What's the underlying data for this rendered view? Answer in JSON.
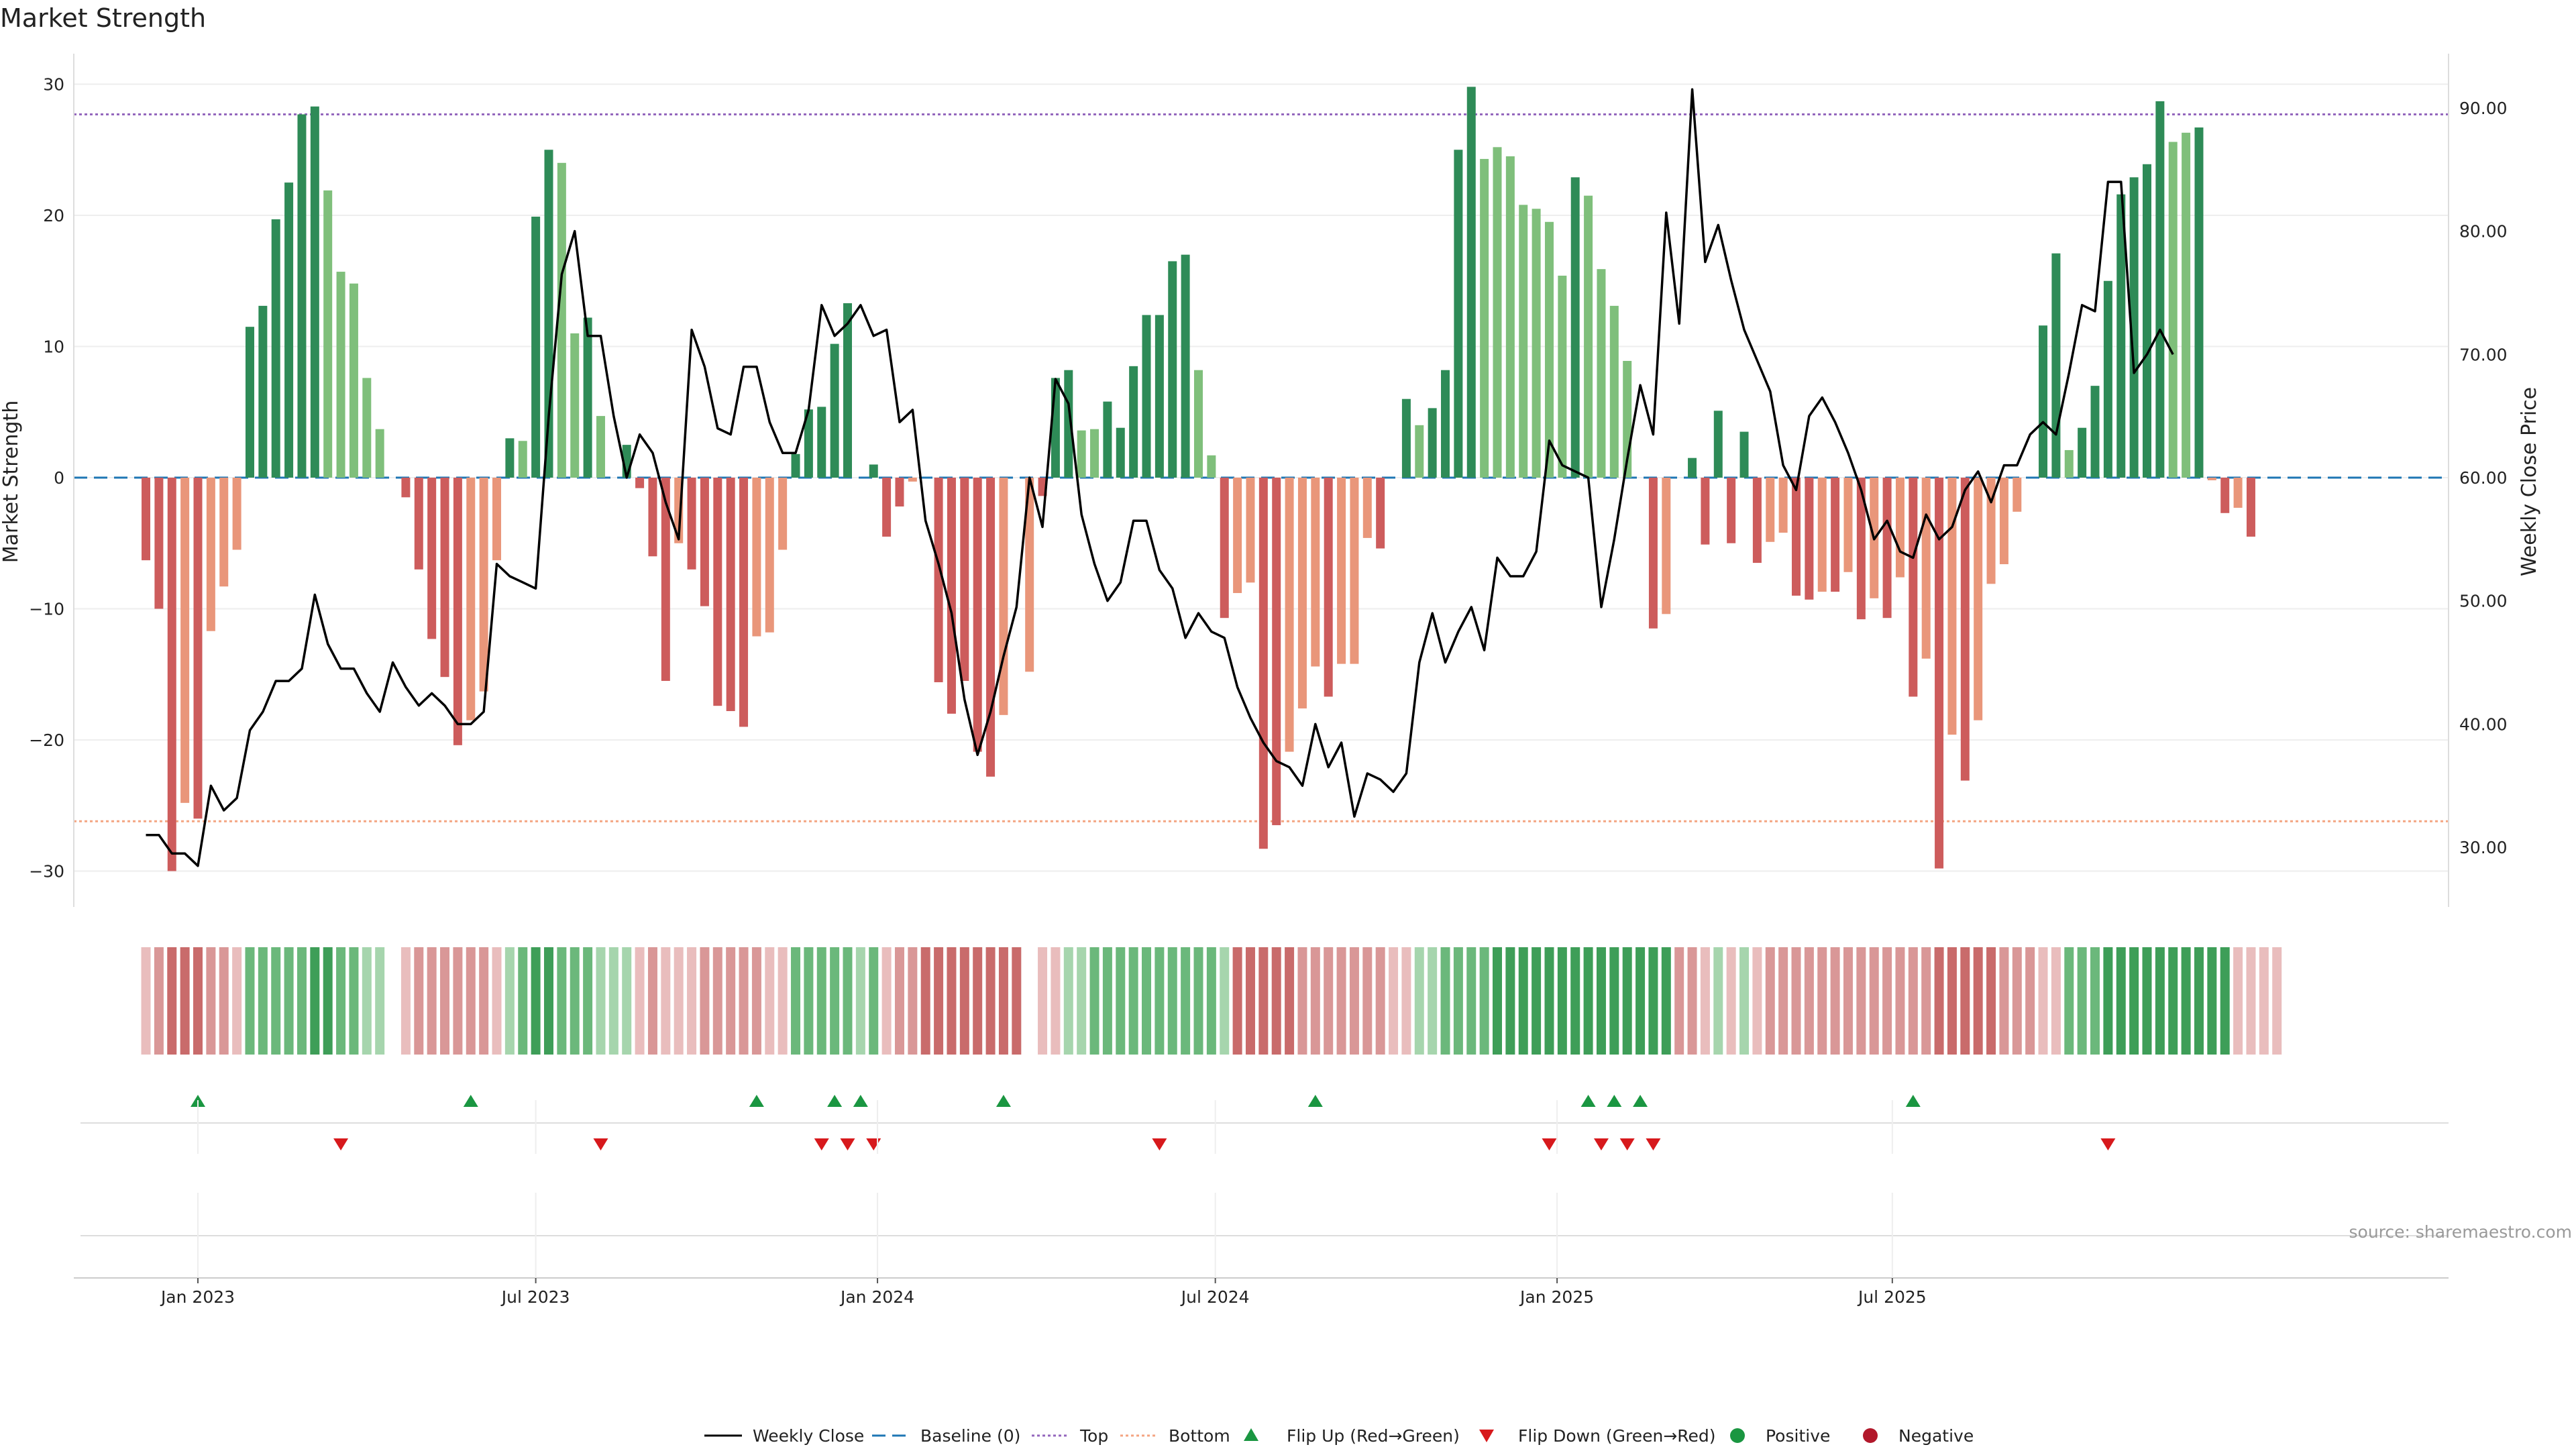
{
  "title": "Market Strength",
  "source_note": "source: sharemaestro.com",
  "chart_data": {
    "type": "bar",
    "title": "Market Strength",
    "y_left": {
      "label": "Market Strength",
      "ylim": [
        -32.5,
        32.5
      ],
      "ticks": [
        30,
        20,
        10,
        0,
        -10,
        -20,
        -30
      ],
      "tick_labels": [
        "30",
        "20",
        "10",
        "0",
        "−10",
        "−20",
        "−30"
      ]
    },
    "y_right": {
      "label": "Weekly Close Price",
      "ylim": [
        25,
        95
      ],
      "ticks": [
        90,
        80,
        70,
        60,
        50,
        40,
        30
      ],
      "tick_labels": [
        "90.00",
        "80.00",
        "70.00",
        "60.00",
        "50.00",
        "40.00",
        "30.00"
      ]
    },
    "x_axis": {
      "start_week_offset": -4,
      "date_ticks": [
        {
          "week": 0,
          "label": "Jan 2023"
        },
        {
          "week": 26,
          "label": "Jul 2023"
        },
        {
          "week": 52.3,
          "label": "Jan 2024"
        },
        {
          "week": 78.3,
          "label": "Jul 2024"
        },
        {
          "week": 104.6,
          "label": "Jan 2025"
        },
        {
          "week": 130.4,
          "label": "Jul 2025"
        }
      ]
    },
    "reference_lines": {
      "top": 27.7,
      "bottom": -26.2,
      "baseline": 0
    },
    "colors": {
      "pos_strong": "#2e8b57",
      "pos_weak": "#7fbf7b",
      "neg_strong": "#cd5c5c",
      "neg_weak": "#e9967a",
      "line": "#000000",
      "top_line": "#9467bd",
      "bottom_line": "#f4a582",
      "baseline": "#1f77b4",
      "flip_up": "#1a9641",
      "flip_down": "#d7191c",
      "positive": "#1a9641",
      "negative": "#b2182b"
    },
    "strength_values": [
      -6.3,
      -10,
      -30,
      -24.8,
      -26,
      -11.7,
      -8.3,
      -5.5,
      11.5,
      13.1,
      19.7,
      22.5,
      27.7,
      28.3,
      21.9,
      15.7,
      14.8,
      7.6,
      3.7,
      0,
      -1.5,
      -7,
      -12.3,
      -15.2,
      -20.4,
      -18.5,
      -16.3,
      -6.3,
      3,
      2.8,
      19.9,
      25,
      24,
      11,
      12.2,
      4.7,
      0,
      2.5,
      -0.8,
      -6,
      -15.5,
      -5,
      -7,
      -9.8,
      -17.4,
      -17.8,
      -19,
      -12.1,
      -11.8,
      -5.5,
      1.8,
      5.2,
      5.4,
      10.2,
      13.3,
      0,
      1,
      -4.5,
      -2.2,
      -0.3,
      0,
      -15.6,
      -18,
      -15.5,
      -20.9,
      -22.8,
      -18.1,
      0,
      -14.8,
      -1.4,
      7.6,
      8.2,
      3.6,
      3.7,
      5.8,
      3.8,
      8.5,
      12.4,
      12.4,
      16.5,
      17,
      8.2,
      1.7,
      -10.7,
      -8.8,
      -8,
      -28.3,
      -26.5,
      -20.9,
      -17.6,
      -14.4,
      -16.7,
      -14.2,
      -14.2,
      -4.6,
      -5.4,
      0,
      6,
      4,
      5.3,
      8.2,
      25,
      29.8,
      24.3,
      25.2,
      24.5,
      20.8,
      20.5,
      19.5,
      15.4,
      22.9,
      21.5,
      15.9,
      13.1,
      8.9,
      0,
      -11.5,
      -10.4,
      0,
      1.5,
      -5.1,
      5.1,
      -5,
      3.5,
      -6.5,
      -4.9,
      -4.2,
      -9,
      -9.3,
      -8.7,
      -8.7,
      -7.2,
      -10.8,
      -9.2,
      -10.7,
      -7.6,
      -16.7,
      -13.8,
      -29.8,
      -19.6,
      -23.1,
      -18.5,
      -8.1,
      -6.6,
      -2.6,
      0,
      11.6,
      17.1,
      2.1,
      3.8,
      7,
      15,
      21.6,
      22.9,
      23.9,
      28.7,
      25.6,
      26.3,
      26.7,
      -0.2,
      -2.7,
      -2.3,
      -4.5
    ],
    "strength_colors": [
      "neg_strong",
      "neg_strong",
      "neg_strong",
      "neg_weak",
      "neg_strong",
      "neg_weak",
      "neg_weak",
      "neg_weak",
      "pos_strong",
      "pos_strong",
      "pos_strong",
      "pos_strong",
      "pos_strong",
      "pos_strong",
      "pos_weak",
      "pos_weak",
      "pos_weak",
      "pos_weak",
      "pos_weak",
      "none",
      "neg_strong",
      "neg_strong",
      "neg_strong",
      "neg_strong",
      "neg_strong",
      "neg_weak",
      "neg_weak",
      "neg_weak",
      "pos_strong",
      "pos_weak",
      "pos_strong",
      "pos_strong",
      "pos_weak",
      "pos_weak",
      "pos_strong",
      "pos_weak",
      "none",
      "pos_strong",
      "neg_strong",
      "neg_strong",
      "neg_strong",
      "neg_weak",
      "neg_strong",
      "neg_strong",
      "neg_strong",
      "neg_strong",
      "neg_strong",
      "neg_weak",
      "neg_weak",
      "neg_weak",
      "pos_strong",
      "pos_strong",
      "pos_strong",
      "pos_strong",
      "pos_strong",
      "none",
      "pos_strong",
      "neg_strong",
      "neg_strong",
      "neg_weak",
      "none",
      "neg_strong",
      "neg_strong",
      "neg_strong",
      "neg_strong",
      "neg_strong",
      "neg_weak",
      "none",
      "neg_weak",
      "neg_strong",
      "pos_strong",
      "pos_strong",
      "pos_weak",
      "pos_weak",
      "pos_strong",
      "pos_strong",
      "pos_strong",
      "pos_strong",
      "pos_strong",
      "pos_strong",
      "pos_strong",
      "pos_weak",
      "pos_weak",
      "neg_strong",
      "neg_weak",
      "neg_weak",
      "neg_strong",
      "neg_strong",
      "neg_weak",
      "neg_weak",
      "neg_weak",
      "neg_strong",
      "neg_weak",
      "neg_weak",
      "neg_weak",
      "neg_strong",
      "none",
      "pos_strong",
      "pos_weak",
      "pos_strong",
      "pos_strong",
      "pos_strong",
      "pos_strong",
      "pos_weak",
      "pos_weak",
      "pos_weak",
      "pos_weak",
      "pos_weak",
      "pos_weak",
      "pos_weak",
      "pos_strong",
      "pos_weak",
      "pos_weak",
      "pos_weak",
      "pos_weak",
      "none",
      "neg_strong",
      "neg_weak",
      "none",
      "pos_strong",
      "neg_strong",
      "pos_strong",
      "neg_strong",
      "pos_strong",
      "neg_strong",
      "neg_weak",
      "neg_weak",
      "neg_strong",
      "neg_strong",
      "neg_weak",
      "neg_strong",
      "neg_weak",
      "neg_strong",
      "neg_weak",
      "neg_strong",
      "neg_weak",
      "neg_strong",
      "neg_weak",
      "neg_strong",
      "neg_weak",
      "neg_strong",
      "neg_weak",
      "neg_weak",
      "neg_weak",
      "neg_weak",
      "none",
      "pos_strong",
      "pos_strong",
      "pos_weak",
      "pos_strong",
      "pos_strong",
      "pos_strong",
      "pos_strong",
      "pos_strong",
      "pos_strong",
      "pos_strong",
      "pos_weak",
      "pos_weak",
      "pos_strong",
      "neg_weak",
      "neg_strong",
      "neg_weak",
      "neg_strong"
    ],
    "price_points": [
      [
        -4,
        31
      ],
      [
        -3,
        31
      ],
      [
        -2,
        29.5
      ],
      [
        -1,
        29.5
      ],
      [
        0,
        28.5
      ],
      [
        1,
        35
      ],
      [
        2,
        33
      ],
      [
        3,
        34
      ],
      [
        4,
        39.5
      ],
      [
        5,
        41
      ],
      [
        6,
        43.5
      ],
      [
        7,
        43.5
      ],
      [
        8,
        44.5
      ],
      [
        9,
        50.5
      ],
      [
        10,
        46.5
      ],
      [
        11,
        44.5
      ],
      [
        12,
        44.5
      ],
      [
        13,
        42.5
      ],
      [
        14,
        41
      ],
      [
        15,
        45
      ],
      [
        16,
        43
      ],
      [
        17,
        41.5
      ],
      [
        18,
        42.5
      ],
      [
        19,
        41.5
      ],
      [
        20,
        40
      ],
      [
        21,
        40
      ],
      [
        22,
        41
      ],
      [
        23,
        53
      ],
      [
        24,
        52
      ],
      [
        25,
        51.5
      ],
      [
        26,
        51
      ],
      [
        27,
        65
      ],
      [
        28,
        76.5
      ],
      [
        29,
        80
      ],
      [
        30,
        71.5
      ],
      [
        31,
        71.5
      ],
      [
        32,
        65
      ],
      [
        33,
        60
      ],
      [
        34,
        63.5
      ],
      [
        35,
        62
      ],
      [
        36,
        58
      ],
      [
        37,
        55
      ],
      [
        38,
        72
      ],
      [
        39,
        69
      ],
      [
        40,
        64
      ],
      [
        41,
        63.5
      ],
      [
        42,
        69
      ],
      [
        43,
        69
      ],
      [
        44,
        64.5
      ],
      [
        45,
        62
      ],
      [
        46,
        62
      ],
      [
        47,
        65.5
      ],
      [
        48,
        74
      ],
      [
        49,
        71.5
      ],
      [
        50,
        72.5
      ],
      [
        51,
        74
      ],
      [
        52,
        71.5
      ],
      [
        53,
        72
      ],
      [
        54,
        64.5
      ],
      [
        55,
        65.5
      ],
      [
        56,
        56.5
      ],
      [
        57,
        53
      ],
      [
        58,
        49
      ],
      [
        59,
        42
      ],
      [
        60,
        37.5
      ],
      [
        61,
        41
      ],
      [
        62,
        45.5
      ],
      [
        63,
        49.5
      ],
      [
        64,
        60
      ],
      [
        65,
        56
      ],
      [
        66,
        68
      ],
      [
        67,
        66
      ],
      [
        68,
        57
      ],
      [
        69,
        53
      ],
      [
        70,
        50
      ],
      [
        71,
        51.5
      ],
      [
        72,
        56.5
      ],
      [
        73,
        56.5
      ],
      [
        74,
        52.5
      ],
      [
        75,
        51
      ],
      [
        76,
        47
      ],
      [
        77,
        49
      ],
      [
        78,
        47.5
      ],
      [
        79,
        47
      ],
      [
        80,
        43
      ],
      [
        81,
        40.5
      ],
      [
        82,
        38.5
      ],
      [
        83,
        37
      ],
      [
        84,
        36.5
      ],
      [
        85,
        35
      ],
      [
        86,
        40
      ],
      [
        87,
        36.5
      ],
      [
        88,
        38.5
      ],
      [
        89,
        32.5
      ],
      [
        90,
        36
      ],
      [
        91,
        35.5
      ],
      [
        92,
        34.5
      ],
      [
        93,
        36
      ],
      [
        94,
        45
      ],
      [
        95,
        49
      ],
      [
        96,
        45
      ],
      [
        97,
        47.5
      ],
      [
        98,
        49.5
      ],
      [
        99,
        46
      ],
      [
        100,
        53.5
      ],
      [
        101,
        52
      ],
      [
        102,
        52
      ],
      [
        103,
        54
      ],
      [
        104,
        63
      ],
      [
        105,
        61
      ],
      [
        106,
        60.5
      ],
      [
        107,
        60
      ],
      [
        108,
        49.5
      ],
      [
        109,
        55
      ],
      [
        110,
        61.5
      ],
      [
        111,
        67.5
      ],
      [
        112,
        63.5
      ],
      [
        113,
        81.5
      ],
      [
        114,
        72.5
      ],
      [
        115,
        91.5
      ],
      [
        116,
        77.5
      ],
      [
        117,
        80.5
      ],
      [
        118,
        76
      ],
      [
        119,
        72
      ],
      [
        120,
        69.5
      ],
      [
        121,
        67
      ],
      [
        122,
        61
      ],
      [
        123,
        59
      ],
      [
        124,
        65
      ],
      [
        125,
        66.5
      ],
      [
        126,
        64.5
      ],
      [
        127,
        62
      ],
      [
        128,
        59
      ],
      [
        129,
        55
      ],
      [
        130,
        56.5
      ],
      [
        131,
        54
      ],
      [
        132,
        53.5
      ],
      [
        133,
        57
      ],
      [
        134,
        55
      ],
      [
        135,
        56
      ],
      [
        136,
        59
      ],
      [
        137,
        60.5
      ],
      [
        138,
        58
      ],
      [
        139,
        61
      ],
      [
        140,
        61
      ],
      [
        141,
        63.5
      ],
      [
        142,
        64.5
      ],
      [
        143,
        63.5
      ],
      [
        144,
        68.5
      ],
      [
        145,
        74
      ],
      [
        146,
        73.5
      ],
      [
        147,
        84
      ],
      [
        148,
        84
      ],
      [
        149,
        68.5
      ],
      [
        150,
        70
      ],
      [
        151,
        72
      ],
      [
        152,
        70
      ]
    ],
    "heat_strip": {
      "values": [
        -1,
        -2,
        -3,
        -3,
        -3,
        -2,
        -2,
        -1,
        2,
        2,
        2,
        2,
        2,
        3,
        3,
        2,
        2,
        1,
        1,
        0,
        -1,
        -2,
        -2,
        -2,
        -2,
        -2,
        -2,
        -1,
        1,
        2,
        3,
        3,
        2,
        2,
        2,
        1,
        1,
        1,
        -1,
        -2,
        -1,
        -1,
        -1,
        -2,
        -2,
        -2,
        -2,
        -2,
        -1,
        -1,
        2,
        2,
        2,
        2,
        2,
        1,
        2,
        -1,
        -2,
        -2,
        -3,
        -3,
        -3,
        -3,
        -3,
        -3,
        -3,
        -3,
        0,
        -1,
        -1,
        1,
        1,
        2,
        2,
        2,
        2,
        2,
        2,
        2,
        2,
        2,
        2,
        1,
        -3,
        -3,
        -3,
        -3,
        -3,
        -2,
        -2,
        -2,
        -2,
        -2,
        -2,
        -2,
        -1,
        -1,
        1,
        1,
        2,
        2,
        2,
        2,
        3,
        3,
        3,
        3,
        3,
        3,
        3,
        3,
        3,
        3,
        3,
        3,
        3,
        3,
        -2,
        -2,
        -1,
        1,
        -1,
        1,
        -1,
        -2,
        -2,
        -2,
        -2,
        -2,
        -2,
        -2,
        -2,
        -2,
        -2,
        -2,
        -2,
        -2,
        -3,
        -3,
        -3,
        -3,
        -3,
        -2,
        -2,
        -2,
        -1,
        -1,
        2,
        2,
        2,
        3,
        3,
        3,
        3,
        3,
        3,
        3,
        3,
        3,
        3,
        -1,
        -1,
        -1,
        -1
      ]
    },
    "flips_up_weeks": [
      0,
      21,
      43,
      49,
      51,
      62,
      86,
      107,
      109,
      111,
      132
    ],
    "flips_down_weeks": [
      11,
      31,
      48,
      50,
      52,
      74,
      104,
      108,
      110,
      112,
      147
    ],
    "legend": [
      "Weekly Close",
      "Baseline (0)",
      "Top",
      "Bottom",
      "Flip Up (Red→Green)",
      "Flip Down (Green→Red)",
      "Positive",
      "Negative"
    ]
  }
}
